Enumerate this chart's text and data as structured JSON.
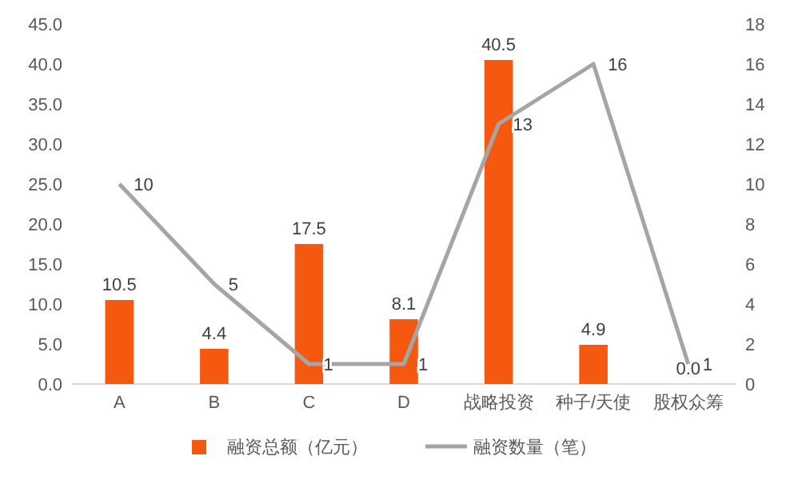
{
  "chart_data": {
    "type": "bar",
    "categories": [
      "A",
      "B",
      "C",
      "D",
      "战略投资",
      "种子/天使",
      "股权众筹"
    ],
    "series": [
      {
        "name": "融资总额（亿元）",
        "color": "#f4590f",
        "values": [
          10.5,
          4.4,
          17.5,
          8.1,
          40.5,
          4.9,
          0.0
        ],
        "value_labels": [
          "10.5",
          "4.4",
          "17.5",
          "8.1",
          "40.5",
          "4.9",
          "0.0"
        ]
      },
      {
        "name": "融资数量（笔）",
        "type": "line",
        "axis": "y2",
        "color": "#a5a5a5",
        "values": [
          10,
          5,
          1,
          1,
          13,
          16,
          1
        ],
        "value_labels": [
          "10",
          "5",
          "1",
          "1",
          "13",
          "16",
          "1"
        ]
      }
    ],
    "ylim": [
      0,
      45
    ],
    "yticks": [
      {
        "value": 0,
        "label": "0.0"
      },
      {
        "value": 5,
        "label": "5.0"
      },
      {
        "value": 10,
        "label": "10.0"
      },
      {
        "value": 15,
        "label": "15.0"
      },
      {
        "value": 20,
        "label": "20.0"
      },
      {
        "value": 25,
        "label": "25.0"
      },
      {
        "value": 30,
        "label": "30.0"
      },
      {
        "value": 35,
        "label": "35.0"
      },
      {
        "value": 40,
        "label": "40.0"
      },
      {
        "value": 45,
        "label": "45.0"
      }
    ],
    "y2lim": [
      0,
      18
    ],
    "y2ticks": [
      0,
      2,
      4,
      6,
      8,
      10,
      12,
      14,
      16,
      18
    ],
    "legend": "bottom",
    "marker": "none",
    "line_style": "solid",
    "grid": false
  }
}
